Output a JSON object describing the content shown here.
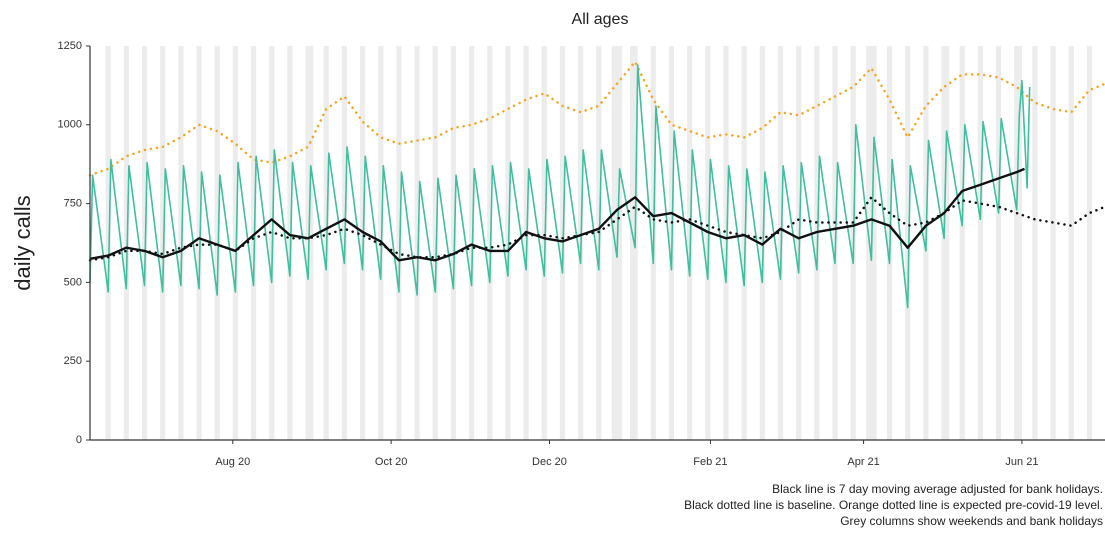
{
  "chart_data": {
    "type": "line",
    "title": "All ages",
    "y_label": "daily calls",
    "notes": [
      "Black line is 7 day moving average adjusted for bank holidays.",
      "Black dotted line is baseline. Orange dotted line is expected pre-covid-19 level.",
      "Grey columns show weekends and bank holidays"
    ],
    "xlim": [
      0,
      391
    ],
    "xticks": [
      {
        "value": 55,
        "label": "Aug 20"
      },
      {
        "value": 116,
        "label": "Oct 20"
      },
      {
        "value": 177,
        "label": "Dec 20"
      },
      {
        "value": 239,
        "label": "Feb 21"
      },
      {
        "value": 298,
        "label": "Apr 21"
      },
      {
        "value": 359,
        "label": "Jun 21"
      }
    ],
    "ylim": [
      0,
      1250
    ],
    "yticks": [
      0,
      250,
      500,
      750,
      1000,
      1250
    ],
    "weekends": [
      6,
      13,
      20,
      27,
      34,
      41,
      48,
      55,
      62,
      69,
      76,
      83,
      90,
      97,
      104,
      111,
      118,
      125,
      132,
      139,
      146,
      153,
      160,
      167,
      174,
      181,
      188,
      195,
      202,
      209,
      216,
      223,
      230,
      237,
      244,
      251,
      258,
      265,
      272,
      279,
      286,
      293,
      300,
      307,
      314,
      321,
      328,
      335,
      342,
      349,
      356,
      363,
      370,
      377,
      384
    ],
    "bank_holidays": [
      85,
      201,
      204,
      208,
      299,
      302,
      330,
      358
    ],
    "shade_color": "#ececec",
    "series": [
      {
        "color": "#f5a623",
        "dotted": true,
        "width": 2.5,
        "x": [
          0,
          7,
          14,
          21,
          28,
          35,
          42,
          49,
          56,
          63,
          70,
          77,
          84,
          91,
          98,
          105,
          112,
          119,
          126,
          133,
          140,
          147,
          154,
          161,
          168,
          175,
          182,
          189,
          196,
          203,
          210,
          217,
          224,
          231,
          238,
          245,
          252,
          259,
          266,
          273,
          280,
          287,
          294,
          301,
          308,
          315,
          322,
          329,
          336,
          343,
          350,
          357,
          364,
          371,
          378,
          385,
          391
        ],
        "values": [
          840,
          860,
          900,
          920,
          930,
          960,
          1000,
          980,
          940,
          890,
          880,
          900,
          930,
          1050,
          1090,
          1010,
          960,
          940,
          950,
          960,
          990,
          1000,
          1020,
          1050,
          1080,
          1100,
          1060,
          1040,
          1060,
          1130,
          1200,
          1080,
          1000,
          980,
          960,
          970,
          960,
          990,
          1040,
          1030,
          1060,
          1090,
          1120,
          1180,
          1080,
          960,
          1060,
          1120,
          1160,
          1160,
          1150,
          1120,
          1070,
          1050,
          1040,
          1110,
          1130
        ]
      },
      {
        "color": "#3fbf9f",
        "dotted": false,
        "width": 1.6,
        "x": [
          0,
          1,
          7,
          8,
          14,
          15,
          21,
          22,
          28,
          29,
          35,
          36,
          42,
          43,
          49,
          50,
          56,
          57,
          63,
          64,
          70,
          71,
          77,
          78,
          84,
          85,
          91,
          92,
          98,
          99,
          105,
          106,
          112,
          113,
          119,
          120,
          126,
          127,
          133,
          134,
          140,
          141,
          147,
          148,
          154,
          155,
          161,
          162,
          168,
          169,
          175,
          176,
          182,
          183,
          189,
          190,
          196,
          197,
          203,
          204,
          210,
          211,
          217,
          218,
          224,
          225,
          231,
          232,
          238,
          239,
          245,
          246,
          252,
          253,
          259,
          260,
          266,
          267,
          273,
          274,
          280,
          281,
          287,
          288,
          294,
          295,
          301,
          302,
          308,
          309,
          315,
          316,
          322,
          323,
          329,
          330,
          336,
          337,
          343,
          344,
          350,
          351,
          357,
          358,
          359,
          361,
          362
        ],
        "values": [
          500,
          840,
          470,
          890,
          480,
          870,
          490,
          880,
          470,
          860,
          490,
          870,
          480,
          850,
          460,
          840,
          470,
          880,
          490,
          900,
          500,
          920,
          520,
          880,
          510,
          870,
          540,
          910,
          560,
          930,
          540,
          900,
          510,
          870,
          470,
          850,
          460,
          820,
          470,
          830,
          480,
          840,
          490,
          860,
          500,
          870,
          520,
          880,
          540,
          860,
          520,
          890,
          530,
          900,
          560,
          920,
          540,
          920,
          580,
          860,
          610,
          1190,
          560,
          1060,
          540,
          980,
          520,
          920,
          510,
          890,
          500,
          870,
          490,
          860,
          500,
          850,
          510,
          870,
          530,
          880,
          540,
          900,
          560,
          880,
          560,
          1000,
          570,
          960,
          560,
          890,
          420,
          870,
          600,
          950,
          640,
          980,
          680,
          1000,
          700,
          1010,
          720,
          1020,
          730,
          1030,
          1140,
          800,
          1120
        ]
      },
      {
        "color": "#111111",
        "dotted": true,
        "width": 2.5,
        "x": [
          0,
          7,
          14,
          21,
          28,
          35,
          42,
          49,
          56,
          63,
          70,
          77,
          84,
          91,
          98,
          105,
          112,
          119,
          126,
          133,
          140,
          147,
          154,
          161,
          168,
          175,
          182,
          189,
          196,
          203,
          210,
          217,
          224,
          231,
          238,
          245,
          252,
          259,
          266,
          273,
          280,
          287,
          294,
          301,
          308,
          315,
          322,
          329,
          336,
          343,
          350,
          357,
          364,
          371,
          378,
          385,
          391
        ],
        "values": [
          570,
          580,
          600,
          600,
          590,
          610,
          620,
          620,
          600,
          640,
          660,
          640,
          640,
          650,
          670,
          650,
          620,
          590,
          580,
          580,
          590,
          610,
          610,
          620,
          650,
          650,
          640,
          650,
          660,
          700,
          740,
          700,
          690,
          700,
          680,
          660,
          650,
          640,
          660,
          700,
          690,
          690,
          690,
          770,
          720,
          680,
          690,
          720,
          760,
          750,
          740,
          720,
          700,
          690,
          680,
          720,
          740
        ]
      },
      {
        "color": "#111111",
        "dotted": false,
        "width": 2.4,
        "x": [
          0,
          7,
          14,
          21,
          28,
          35,
          42,
          49,
          56,
          63,
          70,
          77,
          84,
          91,
          98,
          105,
          112,
          119,
          126,
          133,
          140,
          147,
          154,
          161,
          168,
          175,
          182,
          189,
          196,
          203,
          210,
          217,
          224,
          231,
          238,
          245,
          252,
          259,
          266,
          273,
          280,
          287,
          294,
          301,
          308,
          315,
          322,
          329,
          336,
          343,
          350,
          357,
          360
        ],
        "values": [
          575,
          585,
          610,
          600,
          580,
          600,
          640,
          620,
          600,
          650,
          700,
          650,
          640,
          670,
          700,
          660,
          630,
          570,
          580,
          570,
          590,
          620,
          600,
          600,
          660,
          640,
          630,
          650,
          670,
          730,
          770,
          710,
          720,
          690,
          660,
          640,
          650,
          620,
          670,
          640,
          660,
          670,
          680,
          700,
          680,
          610,
          680,
          720,
          790,
          810,
          830,
          850,
          860
        ]
      }
    ]
  }
}
